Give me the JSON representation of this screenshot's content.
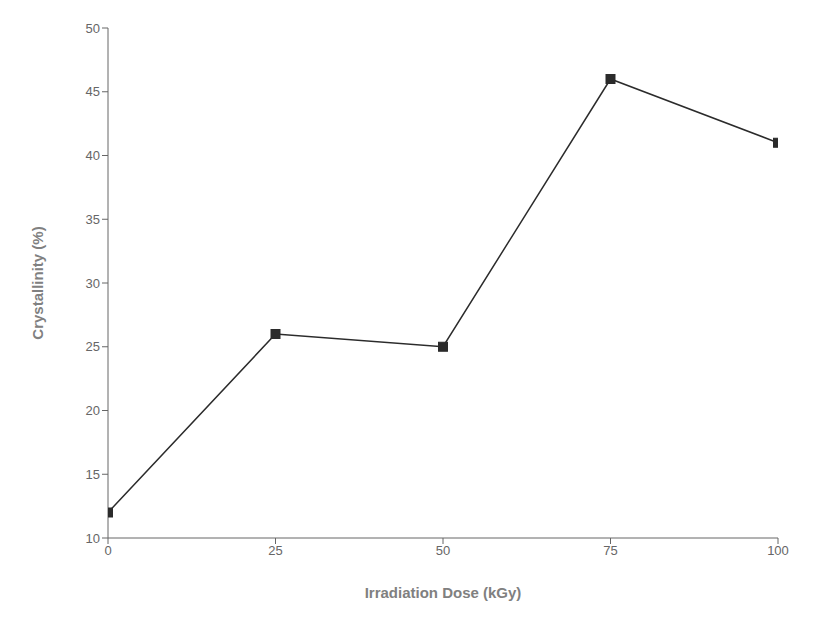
{
  "chart_data": {
    "type": "line",
    "x": [
      0,
      25,
      50,
      75,
      100
    ],
    "values": [
      12,
      26,
      25,
      46,
      41
    ],
    "xlabel": "Irradiation Dose (kGy)",
    "ylabel": "Crystallinity (%)",
    "xlim": [
      0,
      100
    ],
    "ylim": [
      10,
      50
    ],
    "xticks": [
      0,
      25,
      50,
      75,
      100
    ],
    "yticks": [
      10,
      15,
      20,
      25,
      30,
      35,
      40,
      45,
      50
    ],
    "color": "#2b2b2b",
    "marker": "square",
    "grid": false
  }
}
